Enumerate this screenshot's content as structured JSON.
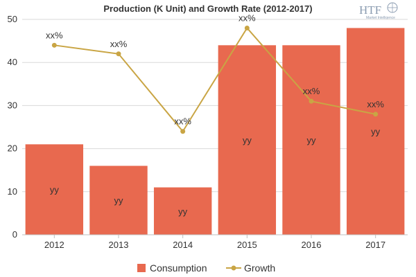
{
  "chart_data": {
    "type": "bar",
    "title": "Production (K Unit) and Growth Rate (2012-2017)",
    "categories": [
      "2012",
      "2013",
      "2014",
      "2015",
      "2016",
      "2017"
    ],
    "series": [
      {
        "name": "Consumption",
        "type": "bar",
        "color": "#e8694f",
        "values": [
          21,
          16,
          11,
          44,
          44,
          48
        ],
        "labels": [
          "yy",
          "yy",
          "yy",
          "yy",
          "yy",
          "yy"
        ]
      },
      {
        "name": "Growth",
        "type": "line",
        "color": "#c9a544",
        "values": [
          44,
          42,
          24,
          48,
          31,
          28
        ],
        "labels": [
          "xx%",
          "xx%",
          "xx%",
          "xx%",
          "xx%",
          "xx%"
        ]
      }
    ],
    "ylim": [
      0,
      50
    ],
    "yticks": [
      0,
      10,
      20,
      30,
      40,
      50
    ],
    "grid": true,
    "legend": "bottom"
  },
  "logo": {
    "text": "HTF",
    "subtext": "Market Intelligence"
  }
}
